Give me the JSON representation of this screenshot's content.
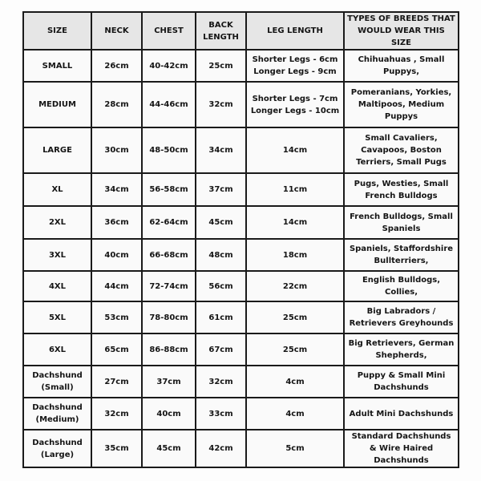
{
  "table": {
    "headers": [
      "SIZE",
      "NECK",
      "CHEST",
      "BACK\nLENGTH",
      "LEG LENGTH",
      "TYPES OF BREEDS THAT WOULD WEAR THIS SIZE"
    ],
    "rows": [
      [
        "SMALL",
        "26cm",
        "40-42cm",
        "25cm",
        "Shorter Legs - 6cm\nLonger Legs - 9cm",
        "Chihuahuas , Small Puppys,"
      ],
      [
        "MEDIUM",
        "28cm",
        "44-46cm",
        "32cm",
        "Shorter Legs - 7cm\nLonger Legs - 10cm",
        "Pomeranians, Yorkies, Maltipoos, Medium Puppys"
      ],
      [
        "LARGE",
        "30cm",
        "48-50cm",
        "34cm",
        "14cm",
        "Small Cavaliers, Cavapoos,  Boston Terriers, Small Pugs"
      ],
      [
        "XL",
        "34cm",
        "56-58cm",
        "37cm",
        "11cm",
        "Pugs, Westies, Small French Bulldogs"
      ],
      [
        "2XL",
        "36cm",
        "62-64cm",
        "45cm",
        "14cm",
        "French Bulldogs, Small Spaniels"
      ],
      [
        "3XL",
        "40cm",
        "66-68cm",
        "48cm",
        "18cm",
        "Spaniels, Staffordshire Bullterriers,"
      ],
      [
        "4XL",
        "44cm",
        "72-74cm",
        "56cm",
        "22cm",
        "English Bulldogs, Collies,"
      ],
      [
        "5XL",
        "53cm",
        "78-80cm",
        "61cm",
        "25cm",
        "Big Labradors / Retrievers Greyhounds"
      ],
      [
        "6XL",
        "65cm",
        "86-88cm",
        "67cm",
        "25cm",
        "Big Retrievers,  German Shepherds,"
      ],
      [
        "Dachshund\n(Small)",
        "27cm",
        "37cm",
        "32cm",
        "4cm",
        "Puppy & Small Mini Dachshunds"
      ],
      [
        "Dachshund\n(Medium)",
        "32cm",
        "40cm",
        "33cm",
        "4cm",
        "Adult Mini Dachshunds"
      ],
      [
        "Dachshund\n(Large)",
        "35cm",
        "45cm",
        "42cm",
        "5cm",
        "Standard Dachshunds & Wire Haired Dachshunds"
      ]
    ]
  },
  "colors": {
    "header_bg": "#e6e6e6",
    "border": "#1a1a1a"
  }
}
